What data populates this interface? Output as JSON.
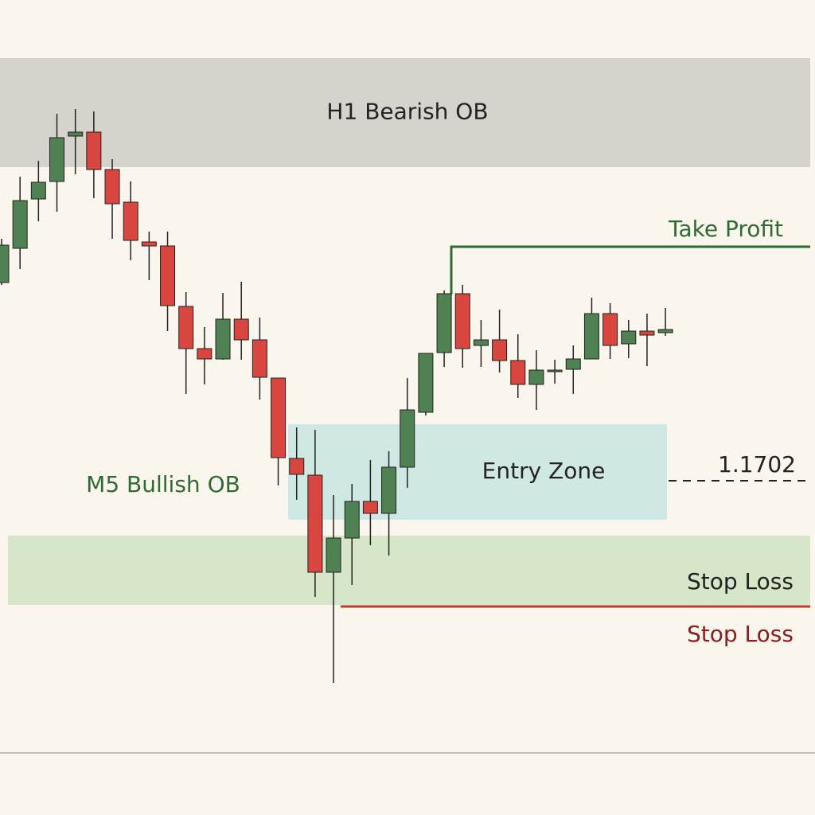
{
  "chart_data": {
    "type": "candlestick",
    "ylim": [
      1.166,
      1.17624
    ],
    "up_color": "#4f8152",
    "down_color": "#d9463f",
    "open": [
      1.17269,
      1.17312,
      1.17374,
      1.17396,
      1.17453,
      1.17458,
      1.17411,
      1.1737,
      1.1732,
      1.17315,
      1.17239,
      1.17186,
      1.17173,
      1.17223,
      1.17197,
      1.17149,
      1.17048,
      1.17027,
      1.16905,
      1.16948,
      1.16994,
      1.16979,
      1.17037,
      1.17106,
      1.17181,
      1.17255,
      1.1719,
      1.17197,
      1.17171,
      1.17141,
      1.17158,
      1.1716,
      1.17173,
      1.1723,
      1.17192,
      1.17208,
      1.17206
    ],
    "high": [
      1.17324,
      1.17402,
      1.17422,
      1.17481,
      1.17487,
      1.17484,
      1.17424,
      1.17396,
      1.17333,
      1.17333,
      1.17257,
      1.17213,
      1.17256,
      1.1727,
      1.17225,
      1.17149,
      1.17087,
      1.17084,
      1.17002,
      1.17016,
      1.17046,
      1.17057,
      1.17149,
      1.1718,
      1.17259,
      1.17266,
      1.17222,
      1.17235,
      1.17204,
      1.17184,
      1.17172,
      1.1719,
      1.1725,
      1.17243,
      1.17222,
      1.1723,
      1.17237
    ],
    "low": [
      1.17266,
      1.17286,
      1.17346,
      1.17358,
      1.17405,
      1.17375,
      1.17324,
      1.17297,
      1.17272,
      1.17208,
      1.17129,
      1.17141,
      1.17172,
      1.17172,
      1.17122,
      1.17014,
      1.16996,
      1.16874,
      1.16766,
      1.16889,
      1.16939,
      1.16926,
      1.17011,
      1.17102,
      1.17163,
      1.17162,
      1.17163,
      1.17156,
      1.17124,
      1.17109,
      1.17142,
      1.17129,
      1.17173,
      1.17173,
      1.17174,
      1.17164,
      1.17202
    ],
    "close": [
      1.17316,
      1.17372,
      1.17395,
      1.17451,
      1.17458,
      1.17411,
      1.17368,
      1.17322,
      1.17315,
      1.1724,
      1.17186,
      1.17173,
      1.17223,
      1.17197,
      1.1715,
      1.17049,
      1.17028,
      1.16905,
      1.16948,
      1.16994,
      1.16979,
      1.17037,
      1.17109,
      1.1718,
      1.17255,
      1.17186,
      1.17197,
      1.17171,
      1.17141,
      1.17159,
      1.17159,
      1.17173,
      1.1723,
      1.1719,
      1.17208,
      1.17203,
      1.1721
    ],
    "zones": [
      {
        "label": "H1 Bearish OB",
        "from": 1.17414,
        "to": 1.17551,
        "color": "#d6d3cd"
      },
      {
        "label": "Entry Zone",
        "from": 1.16971,
        "to": 1.17091,
        "color": "#d0e8e3"
      },
      {
        "label": "Stop Loss",
        "from": 1.16864,
        "to": 1.16951,
        "color": "#d6e7c9"
      }
    ],
    "take_profit": {
      "label": "Take Profit",
      "level": 1.17314,
      "color": "#2e6b33"
    },
    "stop_loss": {
      "label": "Stop Loss",
      "level": 1.16862,
      "color": "#c0392b"
    },
    "entry": {
      "level": 1.1702
    },
    "annotation": "M5 Bullish OB"
  }
}
